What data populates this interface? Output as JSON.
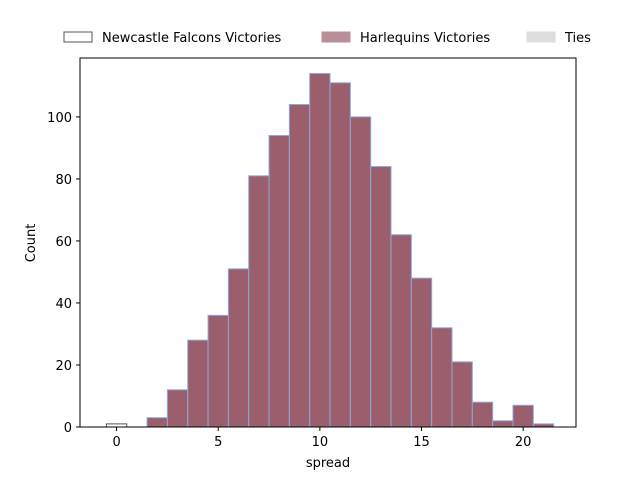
{
  "chart_data": {
    "type": "bar",
    "xlabel": "spread",
    "ylabel": "Count",
    "xlim": [
      -1.8,
      22.6
    ],
    "ylim": [
      0,
      119
    ],
    "xticks": [
      0,
      5,
      10,
      15,
      20
    ],
    "yticks": [
      0,
      20,
      40,
      60,
      80,
      100
    ],
    "grid": false,
    "legend_position": "top",
    "bin_width": 1,
    "series": [
      {
        "name": "Newcastle Falcons Victories",
        "color": "#ffffff",
        "edge_color": "#555555",
        "bins": [
          {
            "x0": -0.5,
            "x1": 0.5,
            "value": 1
          }
        ]
      },
      {
        "name": "Harlequins Victories",
        "color": "#9a5e6c",
        "legend_color": "#b88f99",
        "edge_color": "#8ea8d8",
        "bins": [
          {
            "x0": 1.5,
            "x1": 2.5,
            "value": 3
          },
          {
            "x0": 2.5,
            "x1": 3.5,
            "value": 12
          },
          {
            "x0": 3.5,
            "x1": 4.5,
            "value": 28
          },
          {
            "x0": 4.5,
            "x1": 5.5,
            "value": 36
          },
          {
            "x0": 5.5,
            "x1": 6.5,
            "value": 51
          },
          {
            "x0": 6.5,
            "x1": 7.5,
            "value": 81
          },
          {
            "x0": 7.5,
            "x1": 8.5,
            "value": 94
          },
          {
            "x0": 8.5,
            "x1": 9.5,
            "value": 104
          },
          {
            "x0": 9.5,
            "x1": 10.5,
            "value": 114
          },
          {
            "x0": 10.5,
            "x1": 11.5,
            "value": 111
          },
          {
            "x0": 11.5,
            "x1": 12.5,
            "value": 100
          },
          {
            "x0": 12.5,
            "x1": 13.5,
            "value": 84
          },
          {
            "x0": 13.5,
            "x1": 14.5,
            "value": 62
          },
          {
            "x0": 14.5,
            "x1": 15.5,
            "value": 48
          },
          {
            "x0": 15.5,
            "x1": 16.5,
            "value": 32
          },
          {
            "x0": 16.5,
            "x1": 17.5,
            "value": 21
          },
          {
            "x0": 17.5,
            "x1": 18.5,
            "value": 8
          },
          {
            "x0": 18.5,
            "x1": 19.5,
            "value": 2
          },
          {
            "x0": 19.5,
            "x1": 20.5,
            "value": 7
          },
          {
            "x0": 20.5,
            "x1": 21.5,
            "value": 1
          }
        ]
      },
      {
        "name": "Ties",
        "color": "#dddddd",
        "edge_color": "#dddddd",
        "bins": []
      }
    ]
  }
}
